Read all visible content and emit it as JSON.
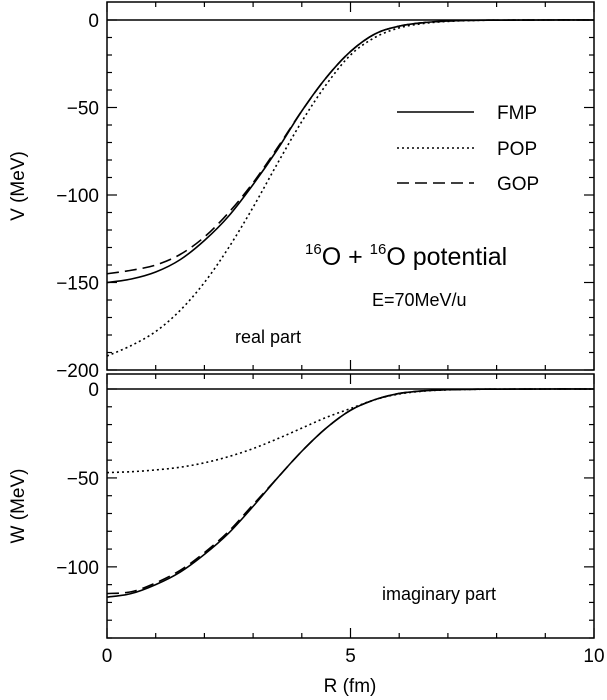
{
  "chart_data": [
    {
      "type": "line",
      "panel": "top",
      "ylabel": "V (MeV)",
      "xlim": [
        0,
        10
      ],
      "ylim": [
        -200,
        0
      ],
      "yticks": [
        0,
        -50,
        -100,
        -150,
        -200
      ],
      "ytick_labels": [
        "0",
        "−50",
        "−100",
        "−150",
        "−200"
      ],
      "title": {
        "mass1": "16",
        "el1": "O + ",
        "mass2": "16",
        "el2": "O potential"
      },
      "energy": "E=70MeV/u",
      "part_label": "real part",
      "legend_position": "top-right",
      "series": [
        {
          "name": "FMP",
          "style": "solid",
          "x": [
            0,
            0.5,
            1,
            1.5,
            2,
            2.5,
            3,
            3.5,
            4,
            4.5,
            5,
            5.5,
            6,
            6.5,
            7,
            7.5,
            8,
            9,
            10
          ],
          "y": [
            -150,
            -148,
            -144,
            -137,
            -126,
            -112,
            -94,
            -74,
            -52,
            -33,
            -18,
            -8,
            -3.5,
            -1.5,
            -0.6,
            -0.2,
            -0.1,
            0,
            0
          ]
        },
        {
          "name": "POP",
          "style": "dotted",
          "x": [
            0,
            0.5,
            1,
            1.5,
            2,
            2.5,
            3,
            3.5,
            4,
            4.5,
            5,
            5.5,
            6,
            6.5,
            7,
            7.5,
            8,
            9,
            10
          ],
          "y": [
            -192,
            -186,
            -178,
            -166,
            -150,
            -130,
            -107,
            -82,
            -58,
            -37,
            -20,
            -10,
            -4.5,
            -2,
            -0.8,
            -0.3,
            -0.1,
            0,
            0
          ]
        },
        {
          "name": "GOP",
          "style": "dashed",
          "x": [
            0,
            0.5,
            1,
            1.5,
            2,
            2.5,
            3,
            3.5,
            4,
            4.5,
            5,
            5.5,
            6,
            6.5,
            7,
            7.5,
            8,
            9,
            10
          ],
          "y": [
            -145,
            -143,
            -140,
            -134,
            -124,
            -110,
            -93,
            -73,
            -52,
            -33,
            -18,
            -8,
            -3.5,
            -1.5,
            -0.6,
            -0.2,
            -0.1,
            0,
            0
          ]
        }
      ]
    },
    {
      "type": "line",
      "panel": "bottom",
      "xlabel": "R (fm)",
      "ylabel": "W (MeV)",
      "xlim": [
        0,
        10
      ],
      "ylim": [
        -140,
        0
      ],
      "xticks": [
        0,
        5,
        10
      ],
      "xtick_labels": [
        "0",
        "5",
        "10"
      ],
      "yticks": [
        0,
        -50,
        -100
      ],
      "ytick_labels": [
        "0",
        "−50",
        "−100"
      ],
      "part_label": "imaginary part",
      "series": [
        {
          "name": "FMP",
          "style": "solid",
          "x": [
            0,
            0.5,
            1,
            1.5,
            2,
            2.5,
            3,
            3.5,
            4,
            4.5,
            5,
            5.5,
            6,
            6.5,
            7,
            7.5,
            8,
            9,
            10
          ],
          "y": [
            -117,
            -115,
            -110,
            -103,
            -93,
            -81,
            -66,
            -50,
            -35,
            -22,
            -12,
            -6,
            -2.5,
            -1,
            -0.4,
            -0.15,
            -0.1,
            0,
            0
          ]
        },
        {
          "name": "POP",
          "style": "dotted",
          "x": [
            0,
            0.5,
            1,
            1.5,
            2,
            2.5,
            3,
            3.5,
            4,
            4.5,
            5,
            5.5,
            6,
            6.5,
            7,
            7.5,
            8,
            9,
            10
          ],
          "y": [
            -47,
            -46.5,
            -45.5,
            -44,
            -41.5,
            -38,
            -33.5,
            -28,
            -22,
            -16,
            -11,
            -6,
            -2.8,
            -1.2,
            -0.5,
            -0.2,
            -0.1,
            0,
            0
          ]
        },
        {
          "name": "GOP",
          "style": "dashed",
          "x": [
            0,
            0.5,
            1,
            1.5,
            2,
            2.5,
            3,
            3.5,
            4,
            4.5,
            5,
            5.5,
            6,
            6.5,
            7,
            7.5,
            8,
            9,
            10
          ],
          "y": [
            -115,
            -114,
            -109,
            -102,
            -92,
            -80,
            -65,
            -50,
            -35,
            -22,
            -12,
            -6,
            -2.5,
            -1,
            -0.4,
            -0.15,
            -0.1,
            0,
            0
          ]
        }
      ]
    }
  ]
}
